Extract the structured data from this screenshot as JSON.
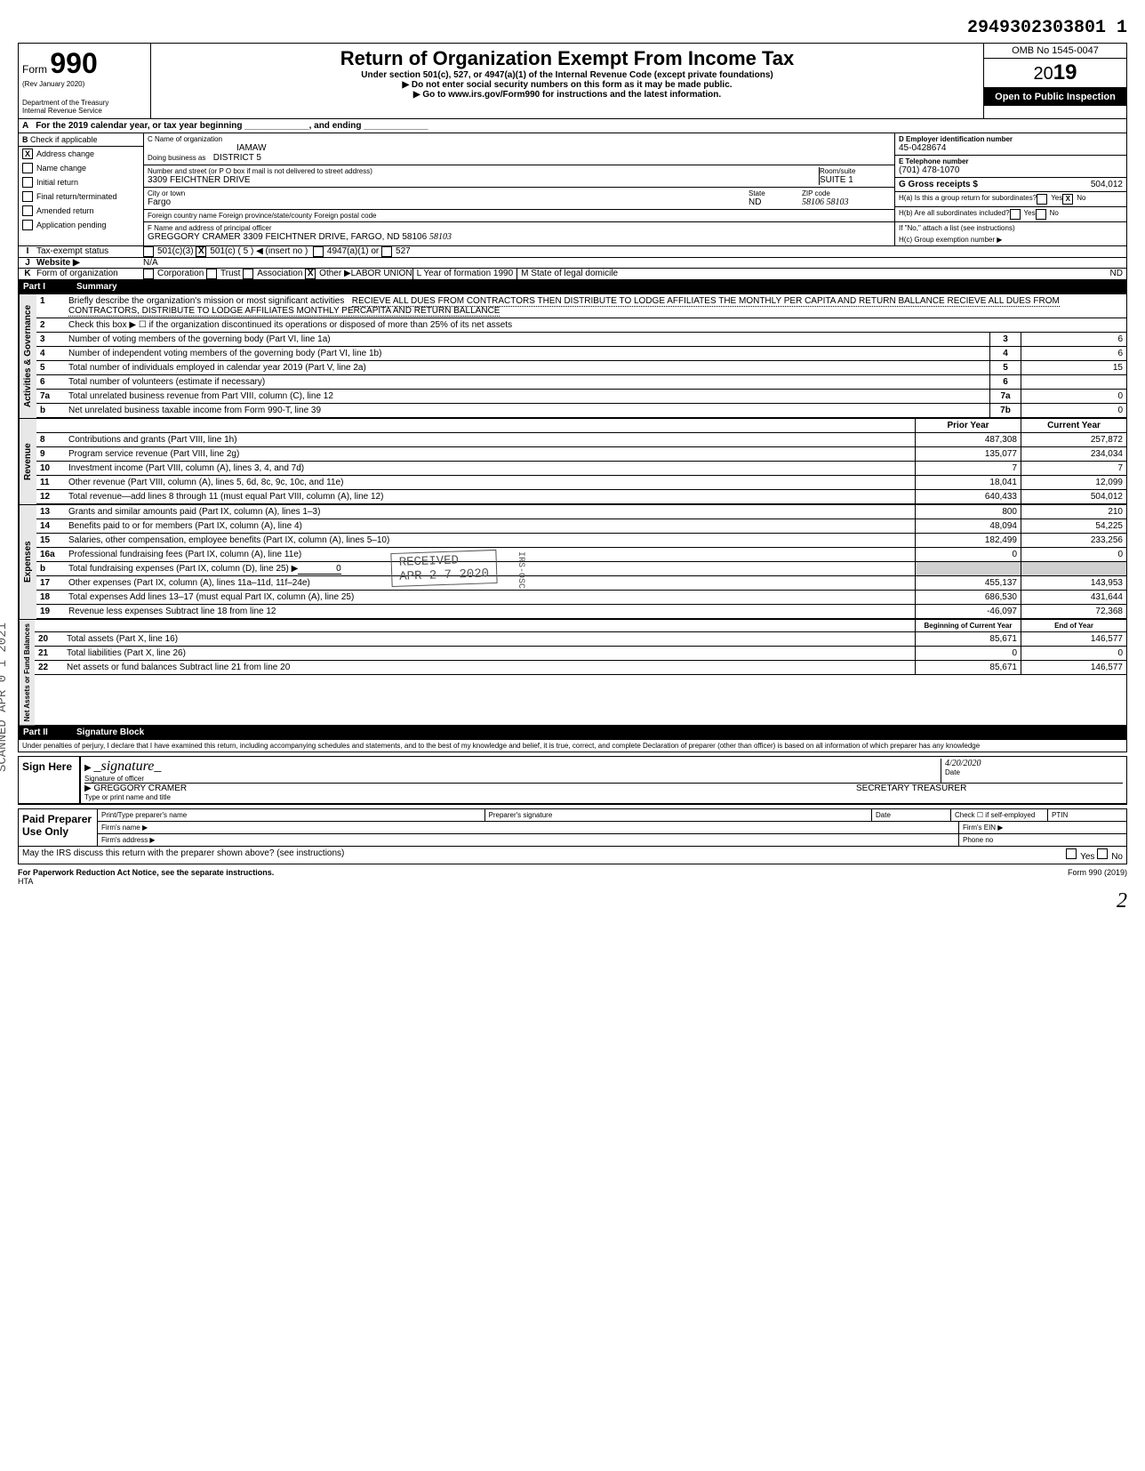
{
  "dln": "2949302303801 1",
  "omb": "OMB No 1545-0047",
  "form_number": "990",
  "form_prefix": "Form",
  "rev": "(Rev January 2020)",
  "dept": "Department of the Treasury",
  "irs": "Internal Revenue Service",
  "title": "Return of Organization Exempt From Income Tax",
  "subtitle1": "Under section 501(c), 527, or 4947(a)(1) of the Internal Revenue Code (except private foundations)",
  "subtitle2": "▶ Do not enter social security numbers on this form as it may be made public.",
  "subtitle3": "▶ Go to www.irs.gov/Form990 for instructions and the latest information.",
  "year_prefix": "20",
  "year_suffix": "19",
  "open_public": "Open to Public Inspection",
  "line_a": "For the 2019 calendar year, or tax year beginning _____________, and ending _____________",
  "col_b_header": "Check if applicable",
  "checkboxes_b": [
    {
      "label": "Address change",
      "checked": true
    },
    {
      "label": "Name change",
      "checked": false
    },
    {
      "label": "Initial return",
      "checked": false
    },
    {
      "label": "Final return/terminated",
      "checked": false
    },
    {
      "label": "Amended return",
      "checked": false
    },
    {
      "label": "Application pending",
      "checked": false
    }
  ],
  "org_name_label": "C Name of organization",
  "org_name": "IAMAW",
  "dba_label": "Doing business as",
  "dba": "DISTRICT 5",
  "street_label": "Number and street (or P O box if mail is not delivered to street address)",
  "street": "3309 FEICHTNER DRIVE",
  "room_label": "Room/suite",
  "room": "SUITE 1",
  "city_label": "City or town",
  "city": "Fargo",
  "state_label": "State",
  "state": "ND",
  "zip_label": "ZIP code",
  "zip": "58106  58103",
  "foreign_label": "Foreign country name          Foreign province/state/county          Foreign postal code",
  "officer_label": "F Name and address of principal officer",
  "officer": "GREGGORY CRAMER 3309 FEICHTNER DRIVE, FARGO, ND 58106",
  "officer_zip_hand": "58103",
  "ein_label": "D Employer identification number",
  "ein": "45-0428674",
  "phone_label": "E Telephone number",
  "phone": "(701) 478-1070",
  "gross_label": "G Gross receipts $",
  "gross": "504,012",
  "ha_label": "H(a) Is this a group return for subordinates?",
  "hb_label": "H(b) Are all subordinates included?",
  "hb_note": "If \"No,\" attach a list (see instructions)",
  "hc_label": "H(c) Group exemption number ▶",
  "tax_status_label": "Tax-exempt status",
  "tax_501c3": "501(c)(3)",
  "tax_501c": "501(c)",
  "tax_501c_num": "5",
  "tax_insert": "◀ (insert no )",
  "tax_4947": "4947(a)(1) or",
  "tax_527": "527",
  "website_label": "Website ▶",
  "website": "N/A",
  "form_org_label": "Form of organization",
  "form_org_corp": "Corporation",
  "form_org_trust": "Trust",
  "form_org_assoc": "Association",
  "form_org_other": "Other ▶",
  "form_org_other_val": "LABOR UNION",
  "year_formation_label": "L Year of formation",
  "year_formation": "1990",
  "state_domicile_label": "M State of legal domicile",
  "state_domicile": "ND",
  "part1_label": "Part I",
  "part1_title": "Summary",
  "mission_label": "Briefly describe the organization's mission or most significant activities",
  "mission": "RECIEVE ALL DUES FROM CONTRACTORS THEN DISTRIBUTE TO LODGE AFFILIATES THE MONTHLY PER CAPITA AND RETURN BALLANCE  RECIEVE ALL DUES FROM CONTRACTORS, DISTRIBUTE TO LODGE AFFILIATES MONTHLY PERCAPITA AND RETURN BALLANCE",
  "line2": "Check this box ▶ ☐ if the organization discontinued its operations or disposed of more than 25% of its net assets",
  "governance_lines": [
    {
      "num": "3",
      "text": "Number of voting members of the governing body (Part VI, line 1a)",
      "key": "3",
      "val": "6"
    },
    {
      "num": "4",
      "text": "Number of independent voting members of the governing body (Part VI, line 1b)",
      "key": "4",
      "val": "6"
    },
    {
      "num": "5",
      "text": "Total number of individuals employed in calendar year 2019 (Part V, line 2a)",
      "key": "5",
      "val": "15"
    },
    {
      "num": "6",
      "text": "Total number of volunteers (estimate if necessary)",
      "key": "6",
      "val": ""
    },
    {
      "num": "7a",
      "text": "Total unrelated business revenue from Part VIII, column (C), line 12",
      "key": "7a",
      "val": "0"
    },
    {
      "num": "b",
      "text": "Net unrelated business taxable income from Form 990-T, line 39",
      "key": "7b",
      "val": "0"
    }
  ],
  "prior_year": "Prior Year",
  "current_year": "Current Year",
  "revenue_lines": [
    {
      "num": "8",
      "text": "Contributions and grants (Part VIII, line 1h)",
      "prior": "487,308",
      "curr": "257,872"
    },
    {
      "num": "9",
      "text": "Program service revenue (Part VIII, line 2g)",
      "prior": "135,077",
      "curr": "234,034"
    },
    {
      "num": "10",
      "text": "Investment income (Part VIII, column (A), lines 3, 4, and 7d)",
      "prior": "7",
      "curr": "7"
    },
    {
      "num": "11",
      "text": "Other revenue (Part VIII, column (A), lines 5, 6d, 8c, 9c, 10c, and 11e)",
      "prior": "18,041",
      "curr": "12,099"
    },
    {
      "num": "12",
      "text": "Total revenue—add lines 8 through 11 (must equal Part VIII, column (A), line 12)",
      "prior": "640,433",
      "curr": "504,012"
    }
  ],
  "expense_lines": [
    {
      "num": "13",
      "text": "Grants and similar amounts paid (Part IX, column (A), lines 1–3)",
      "prior": "800",
      "curr": "210"
    },
    {
      "num": "14",
      "text": "Benefits paid to or for members (Part IX, column (A), line 4)",
      "prior": "48,094",
      "curr": "54,225"
    },
    {
      "num": "15",
      "text": "Salaries, other compensation, employee benefits (Part IX, column (A), lines 5–10)",
      "prior": "182,499",
      "curr": "233,256"
    },
    {
      "num": "16a",
      "text": "Professional fundraising fees (Part IX, column (A), line 11e)",
      "prior": "0",
      "curr": "0"
    },
    {
      "num": "b",
      "text": "Total fundraising expenses (Part IX, column (D), line 25) ▶",
      "prior": "",
      "curr": "",
      "inline": "0"
    },
    {
      "num": "17",
      "text": "Other expenses (Part IX, column (A), lines 11a–11d, 11f–24e)",
      "prior": "455,137",
      "curr": "143,953"
    },
    {
      "num": "18",
      "text": "Total expenses  Add lines 13–17 (must equal Part IX, column (A), line 25)",
      "prior": "686,530",
      "curr": "431,644"
    },
    {
      "num": "19",
      "text": "Revenue less expenses  Subtract line 18 from line 12",
      "prior": "-46,097",
      "curr": "72,368"
    }
  ],
  "boy": "Beginning of Current Year",
  "eoy": "End of Year",
  "net_assets_lines": [
    {
      "num": "20",
      "text": "Total assets (Part X, line 16)",
      "prior": "85,671",
      "curr": "146,577"
    },
    {
      "num": "21",
      "text": "Total liabilities (Part X, line 26)",
      "prior": "0",
      "curr": "0"
    },
    {
      "num": "22",
      "text": "Net assets or fund balances  Subtract line 21 from line 20",
      "prior": "85,671",
      "curr": "146,577"
    }
  ],
  "part2_label": "Part II",
  "part2_title": "Signature Block",
  "penalty": "Under penalties of perjury, I declare that I have examined this return, including accompanying schedules and statements, and to the best of my knowledge and belief, it is true, correct, and complete  Declaration of preparer (other than officer) is based on all information of which preparer has any knowledge",
  "sign_here": "Sign Here",
  "sig_officer_label": "Signature of officer",
  "sig_date_label": "Date",
  "sig_date": "4/20/2020",
  "sig_name": "GREGGORY CRAMER",
  "sig_title": "SECRETARY TREASURER",
  "sig_name_label": "Type or print name and title",
  "paid_prep": "Paid Preparer Use Only",
  "prep_name_label": "Print/Type preparer's name",
  "prep_sig_label": "Preparer's signature",
  "prep_date_label": "Date",
  "prep_check_label": "Check ☐ if self-employed",
  "prep_ptin_label": "PTIN",
  "firm_name_label": "Firm's name ▶",
  "firm_ein_label": "Firm's EIN ▶",
  "firm_addr_label": "Firm's address ▶",
  "firm_phone_label": "Phone no",
  "discuss": "May the IRS discuss this return with the preparer shown above? (see instructions)",
  "paperwork": "For Paperwork Reduction Act Notice, see the separate instructions.",
  "hta": "HTA",
  "form_footer": "Form 990 (2019)",
  "received_stamp": "RECEIVED",
  "received_date": "APR 2 7 2020",
  "received_by": "IRS-OSC",
  "scanned_stamp": "SCANNED APR 0 1 2021",
  "vert_governance": "Activities & Governance",
  "vert_revenue": "Revenue",
  "vert_expenses": "Expenses",
  "vert_netassets": "Net Assets or Fund Balances",
  "yes": "Yes",
  "no": "No",
  "page_hand": "2"
}
